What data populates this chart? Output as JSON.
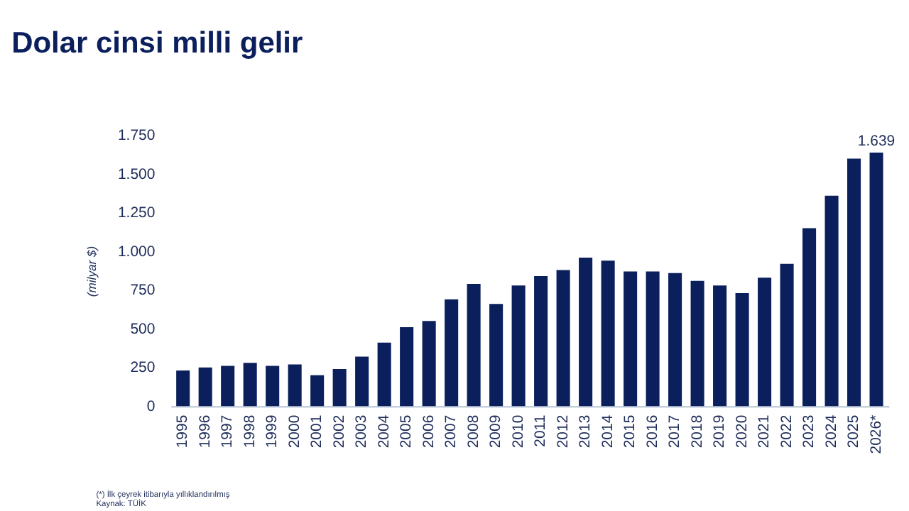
{
  "chart_data": {
    "type": "bar",
    "title": "Dolar cinsi milli gelir",
    "ylabel": "(milyar $)",
    "categories": [
      "1995",
      "1996",
      "1997",
      "1998",
      "1999",
      "2000",
      "2001",
      "2002",
      "2003",
      "2004",
      "2005",
      "2006",
      "2007",
      "2008",
      "2009",
      "2010",
      "2011",
      "2012",
      "2013",
      "2014",
      "2015",
      "2016",
      "2017",
      "2018",
      "2019",
      "2020",
      "2021",
      "2022",
      "2023",
      "2024",
      "2025",
      "2026*"
    ],
    "values": [
      230,
      250,
      260,
      280,
      260,
      270,
      200,
      240,
      320,
      410,
      510,
      550,
      690,
      790,
      660,
      780,
      840,
      880,
      960,
      940,
      870,
      870,
      860,
      810,
      780,
      730,
      830,
      920,
      1150,
      1360,
      1600,
      1639
    ],
    "value_labels": [
      null,
      null,
      null,
      null,
      null,
      null,
      null,
      null,
      null,
      null,
      null,
      null,
      null,
      null,
      null,
      null,
      null,
      null,
      null,
      null,
      null,
      null,
      null,
      null,
      null,
      null,
      null,
      null,
      null,
      null,
      null,
      "1.639"
    ],
    "color": "#0b1f5c",
    "ylim": [
      0,
      1750
    ],
    "yticks": [
      0,
      250,
      500,
      750,
      {
        "value": 1000,
        "label": "1.000"
      },
      {
        "value": 1250,
        "label": "1.250"
      },
      {
        "value": 1500,
        "label": "1.500"
      },
      {
        "value": 1750,
        "label": "1.750"
      }
    ],
    "grid": false,
    "annotations": [
      "(*) İlk çeyrek itibarıyla yıllıklandırılmış",
      "Kaynak: TÜİK"
    ]
  }
}
